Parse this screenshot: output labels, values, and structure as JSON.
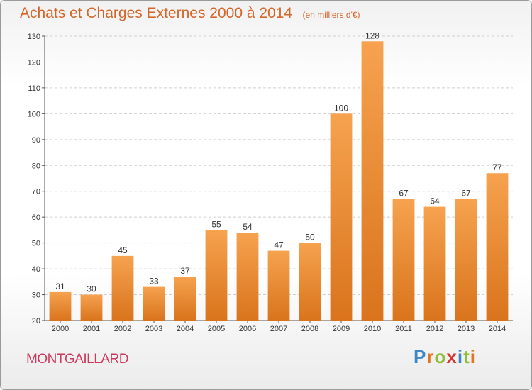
{
  "title": "Achats et Charges Externes 2000 à 2014",
  "subtitle": "(en milliers d'€)",
  "commune": "MONTGAILLARD",
  "brand": {
    "letters": [
      {
        "char": "P",
        "color": "#3a86c8"
      },
      {
        "char": "r",
        "color": "#e2741f"
      },
      {
        "char": "o",
        "color": "#8fbd3a"
      },
      {
        "char": "x",
        "color": "#d8332f"
      },
      {
        "char": "i",
        "color": "#3a86c8"
      },
      {
        "char": "t",
        "color": "#8fbd3a"
      },
      {
        "char": "i",
        "color": "#e2741f"
      }
    ]
  },
  "colors": {
    "title": "#d4662b",
    "commune": "#cd3a5e",
    "bar_light": "#f6a24f",
    "bar_dark": "#d9741c",
    "grid": "#cfcfcf",
    "axis": "#555555"
  },
  "chart_data": {
    "type": "bar",
    "title": "Achats et Charges Externes 2000 à 2014",
    "subtitle": "(en milliers d'€)",
    "xlabel": "",
    "ylabel": "",
    "categories": [
      "2000",
      "2001",
      "2002",
      "2003",
      "2004",
      "2005",
      "2006",
      "2007",
      "2008",
      "2009",
      "2010",
      "2011",
      "2012",
      "2013",
      "2014"
    ],
    "values": [
      31,
      30,
      45,
      33,
      37,
      55,
      54,
      47,
      50,
      100,
      128,
      67,
      64,
      67,
      77
    ],
    "ylim": [
      20,
      130
    ],
    "yticks": [
      20,
      30,
      40,
      50,
      60,
      70,
      80,
      90,
      100,
      110,
      120,
      130
    ],
    "grid": true,
    "data_labels": true
  }
}
